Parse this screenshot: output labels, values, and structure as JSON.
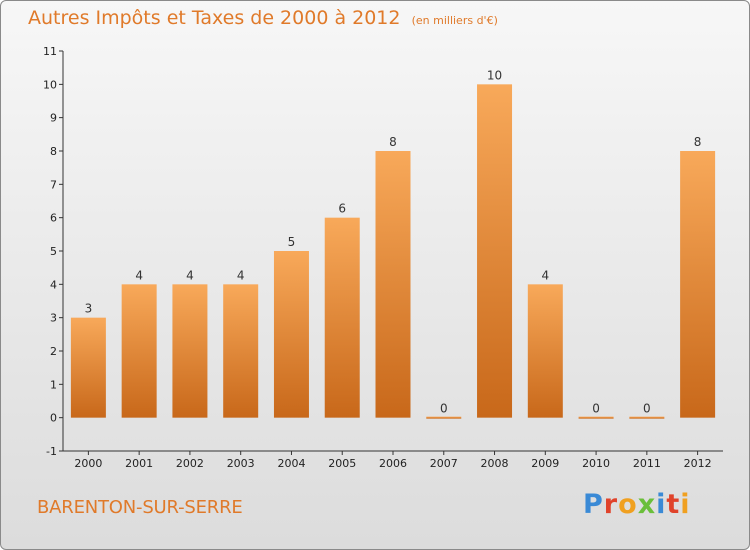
{
  "header": {
    "title": "Autres Impôts et Taxes de 2000 à 2012",
    "subtitle": "(en milliers d'€)"
  },
  "commune": "BARENTON-SUR-SERRE",
  "logo": {
    "letters": [
      "P",
      "r",
      "o",
      "x",
      "i",
      "t",
      "i"
    ],
    "colors": [
      "#3a8ad6",
      "#e0432b",
      "#f0a020",
      "#6abf3a",
      "#3a8ad6",
      "#e0432b",
      "#f0a020"
    ]
  },
  "colors": {
    "bar_top": "#f8a95a",
    "bar_bottom": "#c8681a",
    "axis": "#333333",
    "text_accent": "#e07a2a"
  },
  "chart_data": {
    "type": "bar",
    "categories": [
      "2000",
      "2001",
      "2002",
      "2003",
      "2004",
      "2005",
      "2006",
      "2007",
      "2008",
      "2009",
      "2010",
      "2011",
      "2012"
    ],
    "values": [
      3,
      4,
      4,
      4,
      5,
      6,
      8,
      0,
      10,
      4,
      0,
      0,
      8
    ],
    "data_labels": [
      "3",
      "4",
      "4",
      "4",
      "5",
      "6",
      "8",
      "0",
      "10",
      "4",
      "0",
      "0",
      "8"
    ],
    "yticks": [
      "-1",
      "0",
      "1",
      "2",
      "3",
      "4",
      "5",
      "6",
      "7",
      "8",
      "9",
      "10",
      "11"
    ],
    "ylim": [
      -1,
      11
    ],
    "title": "Autres Impôts et Taxes de 2000 à 2012",
    "xlabel": "",
    "ylabel": "",
    "grid": false,
    "legend": "none"
  }
}
